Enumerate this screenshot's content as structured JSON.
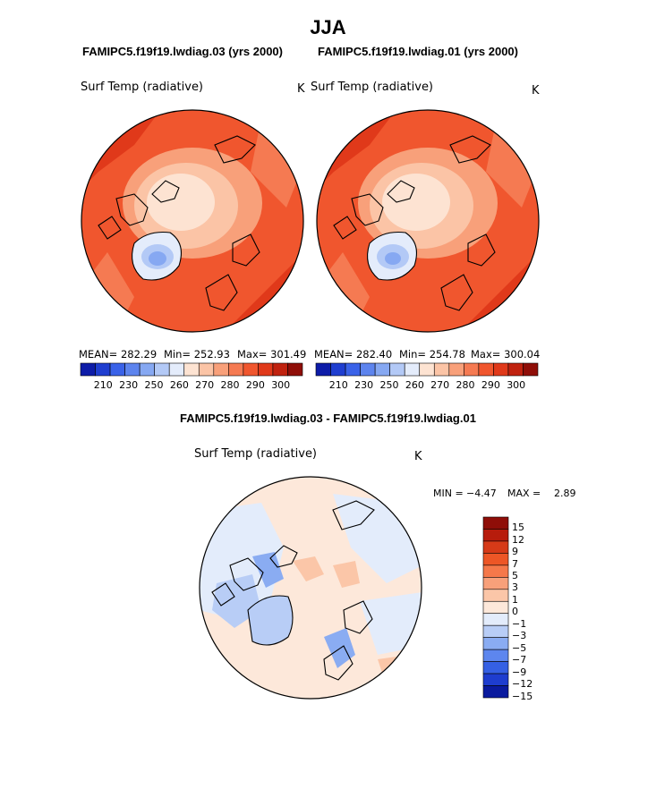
{
  "figure": {
    "season": "JJA",
    "left_case": "FAMIPC5.f19f19.lwdiag.03 (yrs 2000)",
    "right_case": "FAMIPC5.f19f19.lwdiag.01 (yrs 2000)",
    "diff_title": "FAMIPC5.f19f19.lwdiag.03 - FAMIPC5.f19f19.lwdiag.01"
  },
  "chart_data": [
    {
      "type": "heatmap",
      "projection": "north-polar-stereographic",
      "variable": "Surf Temp (radiative)",
      "units": "K",
      "mean_label": "MEAN= 282.29",
      "min_label": "Min= 252.93",
      "max_label": "Max= 301.49",
      "mean": 282.29,
      "min": 252.93,
      "max": 301.49,
      "colorbar_ticks": [
        "210",
        "230",
        "250",
        "260",
        "270",
        "280",
        "290",
        "300"
      ],
      "colorbar_colors": [
        "#0d1ca8",
        "#1f3ed0",
        "#3a62e8",
        "#5d84ee",
        "#86a8f2",
        "#b3c9f6",
        "#e4ecfb",
        "#fde3d2",
        "#fbc4a6",
        "#f8a07a",
        "#f57a52",
        "#f0562e",
        "#e0391a",
        "#c0220f",
        "#8f0e08"
      ]
    },
    {
      "type": "heatmap",
      "projection": "north-polar-stereographic",
      "variable": "Surf Temp (radiative)",
      "units": "K",
      "mean_label": "MEAN= 282.40",
      "min_label": "Min= 254.78",
      "max_label": "Max= 300.04",
      "mean": 282.4,
      "min": 254.78,
      "max": 300.04,
      "colorbar_ticks": [
        "210",
        "230",
        "250",
        "260",
        "270",
        "280",
        "290",
        "300"
      ],
      "colorbar_colors": [
        "#0d1ca8",
        "#1f3ed0",
        "#3a62e8",
        "#5d84ee",
        "#86a8f2",
        "#b3c9f6",
        "#e4ecfb",
        "#fde3d2",
        "#fbc4a6",
        "#f8a07a",
        "#f57a52",
        "#f0562e",
        "#e0391a",
        "#c0220f",
        "#8f0e08"
      ]
    },
    {
      "type": "heatmap",
      "projection": "north-polar-stereographic",
      "variable": "Surf Temp (radiative)",
      "units": "K",
      "min_label": "MIN =",
      "min_value": "−4.47",
      "max_label": "MAX =",
      "max_value": "2.89",
      "min": -4.47,
      "max": 2.89,
      "colorbar_ticks": [
        "15",
        "12",
        "9",
        "7",
        "5",
        "3",
        "1",
        "0",
        "−1",
        "−3",
        "−5",
        "−7",
        "−9",
        "−12",
        "−15"
      ],
      "colorbar_colors": [
        "#8f0e08",
        "#b71c0c",
        "#d63a18",
        "#ed5626",
        "#f5784a",
        "#f8a07a",
        "#fbc6a8",
        "#fde8da",
        "#e3ecfb",
        "#b8cdf6",
        "#8aacf2",
        "#5d86ee",
        "#3560e4",
        "#1e3dcf",
        "#0a1a9e"
      ]
    }
  ]
}
